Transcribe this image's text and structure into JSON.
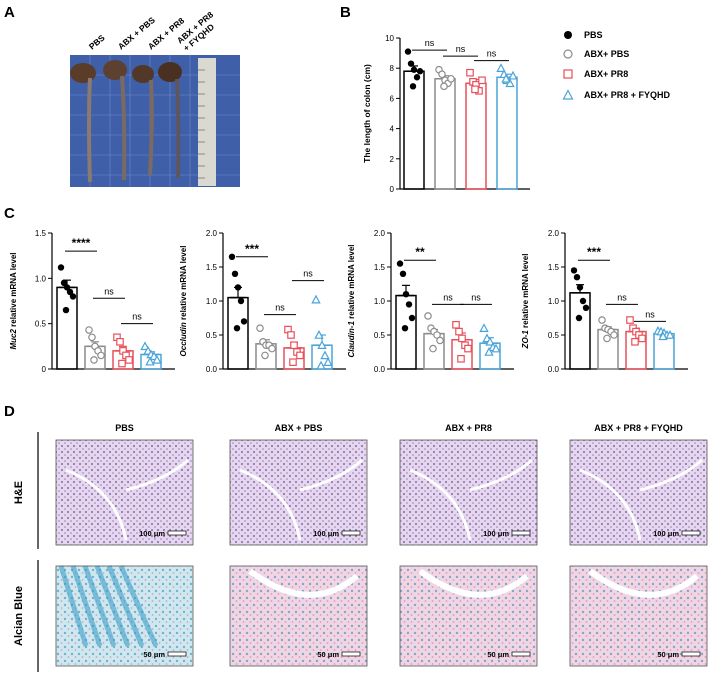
{
  "panel_letters": {
    "a": "A",
    "b": "B",
    "c": "C",
    "d": "D"
  },
  "colors": {
    "pbs": "#000000",
    "abx_pbs": "#8c8c8c",
    "abx_pr8": "#e8505b",
    "abx_pr8_fyqhd": "#4aa3d8"
  },
  "panel_a": {
    "column_labels": [
      "PBS",
      "ABX + PBS",
      "ABX + PR8",
      "ABX + PR8\n+ FYQHD"
    ]
  },
  "legend": {
    "entries": [
      {
        "label": "PBS",
        "marker": "filled-circle",
        "color": "#000000"
      },
      {
        "label": "ABX+ PBS",
        "marker": "open-circle",
        "color": "#8c8c8c"
      },
      {
        "label": "ABX+ PR8",
        "marker": "open-square",
        "color": "#e8505b"
      },
      {
        "label": "ABX+ PR8 + FYQHD",
        "marker": "open-triangle",
        "color": "#4aa3d8"
      }
    ]
  },
  "chart_data": [
    {
      "panel": "B",
      "type": "bar",
      "ylabel": "The length of colon (cm)",
      "ylim": [
        0,
        10
      ],
      "yticks": [
        "0",
        "2",
        "4",
        "6",
        "8",
        "10"
      ],
      "groups": [
        "PBS",
        "ABX+ PBS",
        "ABX+ PR8",
        "ABX+ PR8 + FYQHD"
      ],
      "means": [
        7.8,
        7.3,
        7.0,
        7.4
      ],
      "sem": [
        0.35,
        0.2,
        0.25,
        0.2
      ],
      "points": [
        [
          9.1,
          8.3,
          7.9,
          7.4,
          7.8,
          6.8
        ],
        [
          7.9,
          7.6,
          7.2,
          7.0,
          7.3,
          6.8
        ],
        [
          7.7,
          7.1,
          6.9,
          6.5,
          7.2,
          6.6
        ],
        [
          8.0,
          7.6,
          7.2,
          7.0,
          7.5,
          7.3
        ]
      ],
      "significance": [
        {
          "from": 0,
          "to": 1,
          "label": "ns",
          "y": 9.2
        },
        {
          "from": 1,
          "to": 2,
          "label": "ns",
          "y": 8.8
        },
        {
          "from": 2,
          "to": 3,
          "label": "ns",
          "y": 8.5
        }
      ]
    },
    {
      "panel": "C1",
      "type": "bar",
      "ylabel_italic": "Muc2",
      "ylabel_rest": " relative mRNA level",
      "ylim": [
        0,
        1.5
      ],
      "yticks": [
        "0",
        "0.5",
        "1.0",
        "1.5"
      ],
      "groups": [
        "PBS",
        "ABX+ PBS",
        "ABX+ PR8",
        "ABX+ PR8 + FYQHD"
      ],
      "means": [
        0.9,
        0.25,
        0.2,
        0.16
      ],
      "sem": [
        0.08,
        0.05,
        0.05,
        0.03
      ],
      "points": [
        [
          1.12,
          0.95,
          0.9,
          0.85,
          0.8,
          0.65
        ],
        [
          0.43,
          0.35,
          0.25,
          0.2,
          0.15,
          0.1
        ],
        [
          0.35,
          0.3,
          0.2,
          0.15,
          0.1,
          0.06
        ],
        [
          0.25,
          0.2,
          0.16,
          0.14,
          0.1,
          0.08
        ]
      ],
      "significance": [
        {
          "from": 0,
          "to": 1,
          "label": "****",
          "y": 1.3
        },
        {
          "from": 1,
          "to": 2,
          "label": "ns",
          "y": 0.78
        },
        {
          "from": 2,
          "to": 3,
          "label": "ns",
          "y": 0.5
        }
      ]
    },
    {
      "panel": "C2",
      "type": "bar",
      "ylabel_italic": "Occludin",
      "ylabel_rest": " relative mRNA level",
      "ylim": [
        0,
        2.0
      ],
      "yticks": [
        "0.0",
        "0.5",
        "1.0",
        "1.5",
        "2.0"
      ],
      "groups": [
        "PBS",
        "ABX+ PBS",
        "ABX+ PR8",
        "ABX+ PR8 + FYQHD"
      ],
      "means": [
        1.05,
        0.37,
        0.31,
        0.35
      ],
      "sem": [
        0.15,
        0.06,
        0.08,
        0.15
      ],
      "points": [
        [
          1.65,
          1.4,
          1.2,
          1.0,
          0.7,
          0.6
        ],
        [
          0.6,
          0.4,
          0.35,
          0.35,
          0.3,
          0.2
        ],
        [
          0.58,
          0.5,
          0.35,
          0.25,
          0.2,
          0.1
        ],
        [
          1.02,
          0.5,
          0.35,
          0.2,
          0.1,
          0.05
        ]
      ],
      "significance": [
        {
          "from": 0,
          "to": 1,
          "label": "***",
          "y": 1.65
        },
        {
          "from": 1,
          "to": 2,
          "label": "ns",
          "y": 0.8
        },
        {
          "from": 2,
          "to": 3,
          "label": "ns",
          "y": 1.3
        }
      ]
    },
    {
      "panel": "C3",
      "type": "bar",
      "ylabel_italic": "Claudin-1",
      "ylabel_rest": " relative mRNA level",
      "ylim": [
        0,
        2.0
      ],
      "yticks": [
        "0.0",
        "0.5",
        "1.0",
        "1.5",
        "2.0"
      ],
      "groups": [
        "PBS",
        "ABX+ PBS",
        "ABX+ PR8",
        "ABX+ PR8 + FYQHD"
      ],
      "means": [
        1.08,
        0.52,
        0.43,
        0.38
      ],
      "sem": [
        0.15,
        0.06,
        0.1,
        0.08
      ],
      "points": [
        [
          1.55,
          1.4,
          1.1,
          0.95,
          0.75,
          0.6
        ],
        [
          0.78,
          0.6,
          0.55,
          0.5,
          0.42,
          0.3
        ],
        [
          0.65,
          0.55,
          0.45,
          0.35,
          0.3,
          0.15
        ],
        [
          0.6,
          0.45,
          0.4,
          0.32,
          0.3,
          0.25
        ]
      ],
      "significance": [
        {
          "from": 0,
          "to": 1,
          "label": "**",
          "y": 1.6
        },
        {
          "from": 1,
          "to": 2,
          "label": "ns",
          "y": 0.95
        },
        {
          "from": 2,
          "to": 3,
          "label": "ns",
          "y": 0.95
        }
      ]
    },
    {
      "panel": "C4",
      "type": "bar",
      "ylabel_italic": "ZO-1",
      "ylabel_rest": " relative mRNA level",
      "ylim": [
        0,
        2.0
      ],
      "yticks": [
        "0.0",
        "0.5",
        "1.0",
        "1.5",
        "2.0"
      ],
      "groups": [
        "PBS",
        "ABX+ PBS",
        "ABX+ PR8",
        "ABX+ PR8 + FYQHD"
      ],
      "means": [
        1.12,
        0.58,
        0.55,
        0.52
      ],
      "sem": [
        0.12,
        0.04,
        0.05,
        0.02
      ],
      "points": [
        [
          1.45,
          1.35,
          1.2,
          1.0,
          0.9,
          0.75
        ],
        [
          0.72,
          0.6,
          0.58,
          0.55,
          0.5,
          0.45
        ],
        [
          0.72,
          0.6,
          0.55,
          0.5,
          0.45,
          0.4
        ],
        [
          0.56,
          0.55,
          0.53,
          0.5,
          0.5,
          0.48
        ]
      ],
      "significance": [
        {
          "from": 0,
          "to": 1,
          "label": "***",
          "y": 1.6
        },
        {
          "from": 1,
          "to": 2,
          "label": "ns",
          "y": 0.95
        },
        {
          "from": 2,
          "to": 3,
          "label": "ns",
          "y": 0.7
        }
      ]
    }
  ],
  "panel_d": {
    "columns": [
      "PBS",
      "ABX + PBS",
      "ABX + PR8",
      "ABX + PR8 + FYQHD"
    ],
    "rows": [
      {
        "label": "H&E",
        "scale": "100 μm"
      },
      {
        "label": "Alcian Blue",
        "scale": "50 μm"
      }
    ]
  }
}
